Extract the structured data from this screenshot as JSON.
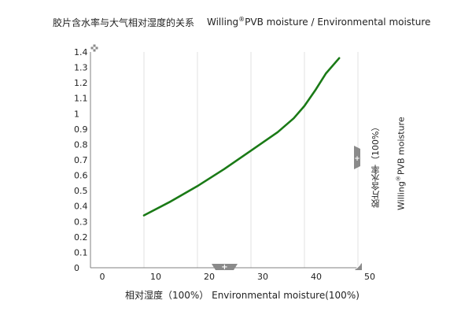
{
  "header": {
    "title_cn": "胶片含水率与大气相对湿度的关系",
    "title_en_brand": "Willing",
    "title_en_reg": "®",
    "title_en_rest": "PVB moisture / Environmental moisture"
  },
  "chart_data": {
    "type": "line",
    "x": [
      10,
      15,
      20,
      25,
      30,
      35,
      38,
      40,
      42,
      44,
      46.5
    ],
    "series": [
      {
        "values": [
          0.34,
          0.43,
          0.53,
          0.64,
          0.76,
          0.88,
          0.97,
          1.05,
          1.15,
          1.26,
          1.36
        ],
        "color": "#1a7a16"
      }
    ],
    "xlim": [
      0,
      50
    ],
    "ylim": [
      0,
      1.4
    ],
    "xticks": [
      "0",
      "10",
      "20",
      "30",
      "40",
      "50"
    ],
    "yticks": [
      "0",
      "0.1",
      "0.2",
      "0.3",
      "0.4",
      "0.5",
      "0.6",
      "0.7",
      "0.8",
      "0.9",
      "1",
      "1.1",
      "1.2",
      "1.3",
      "1.4"
    ],
    "xlabel": "相对湿度（100%）  Environmental moisture(100%)",
    "ylabel_cn": "胶片含水率（100%）",
    "ylabel_en_brand": "Willing",
    "ylabel_en_reg": "®",
    "ylabel_en_rest": "PVB moisture",
    "grid": true,
    "grid_color": "#e2e2e2",
    "axis_color": "#808080"
  },
  "controls": {
    "handle_color": "#8a8a8a",
    "handle_glyph": "+"
  }
}
